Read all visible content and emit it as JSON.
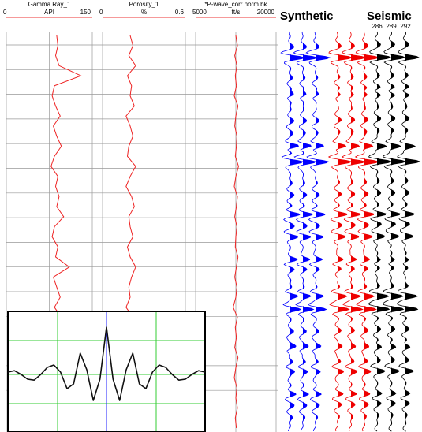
{
  "tracks": [
    {
      "name": "Gamma Ray_1",
      "min": 0,
      "unit": "API",
      "max": 150,
      "values": [
        88,
        90,
        86,
        92,
        130,
        84,
        80,
        86,
        94,
        82,
        88,
        96,
        84,
        78,
        90,
        86,
        92,
        88,
        100,
        84,
        80,
        90,
        86,
        110,
        82,
        88,
        94,
        84,
        96,
        80,
        88,
        92,
        84,
        86,
        120,
        90,
        88,
        80,
        92,
        86
      ]
    },
    {
      "name": "Porosity_1",
      "min": 0,
      "unit": "%",
      "max": 0.6,
      "values": [
        0.2,
        0.22,
        0.19,
        0.24,
        0.18,
        0.21,
        0.2,
        0.23,
        0.17,
        0.2,
        0.22,
        0.19,
        0.18,
        0.24,
        0.2,
        0.17,
        0.21,
        0.23,
        0.19,
        0.2,
        0.22,
        0.18,
        0.2,
        0.24,
        0.21,
        0.19,
        0.2,
        0.17,
        0.22,
        0.2,
        0.19,
        0.23,
        0.18,
        0.2,
        0.21,
        0.25,
        0.19,
        0.2,
        0.22,
        0.2
      ]
    },
    {
      "name": "*P-wave_corr norm bk",
      "min": 5000,
      "unit": "ft/s",
      "max": 20000,
      "values": [
        12500,
        12800,
        12300,
        12700,
        12400,
        12600,
        12200,
        12900,
        12500,
        12300,
        12700,
        12600,
        12400,
        13000,
        12500,
        12200,
        12800,
        12600,
        12300,
        12700,
        12500,
        12400,
        12900,
        12600,
        12300,
        12700,
        12500,
        12000,
        12800,
        12400,
        12600,
        12300,
        12900,
        12500,
        12200,
        12700,
        12500,
        12800,
        12400,
        12600
      ]
    }
  ],
  "panels": {
    "synthetic": "Synthetic",
    "seismic": "Seismic",
    "trace_labels": [
      "286",
      "289",
      "292"
    ]
  },
  "wavelet": {
    "values": [
      0.05,
      0.08,
      0.0,
      -0.1,
      -0.12,
      0.0,
      0.15,
      0.2,
      0.05,
      -0.3,
      -0.2,
      0.45,
      0.1,
      -0.55,
      -0.1,
      1.0,
      -0.1,
      -0.55,
      0.1,
      0.45,
      -0.2,
      -0.3,
      0.05,
      0.2,
      0.15,
      0.0,
      -0.12,
      -0.1,
      0.0,
      0.08,
      0.05
    ]
  }
}
